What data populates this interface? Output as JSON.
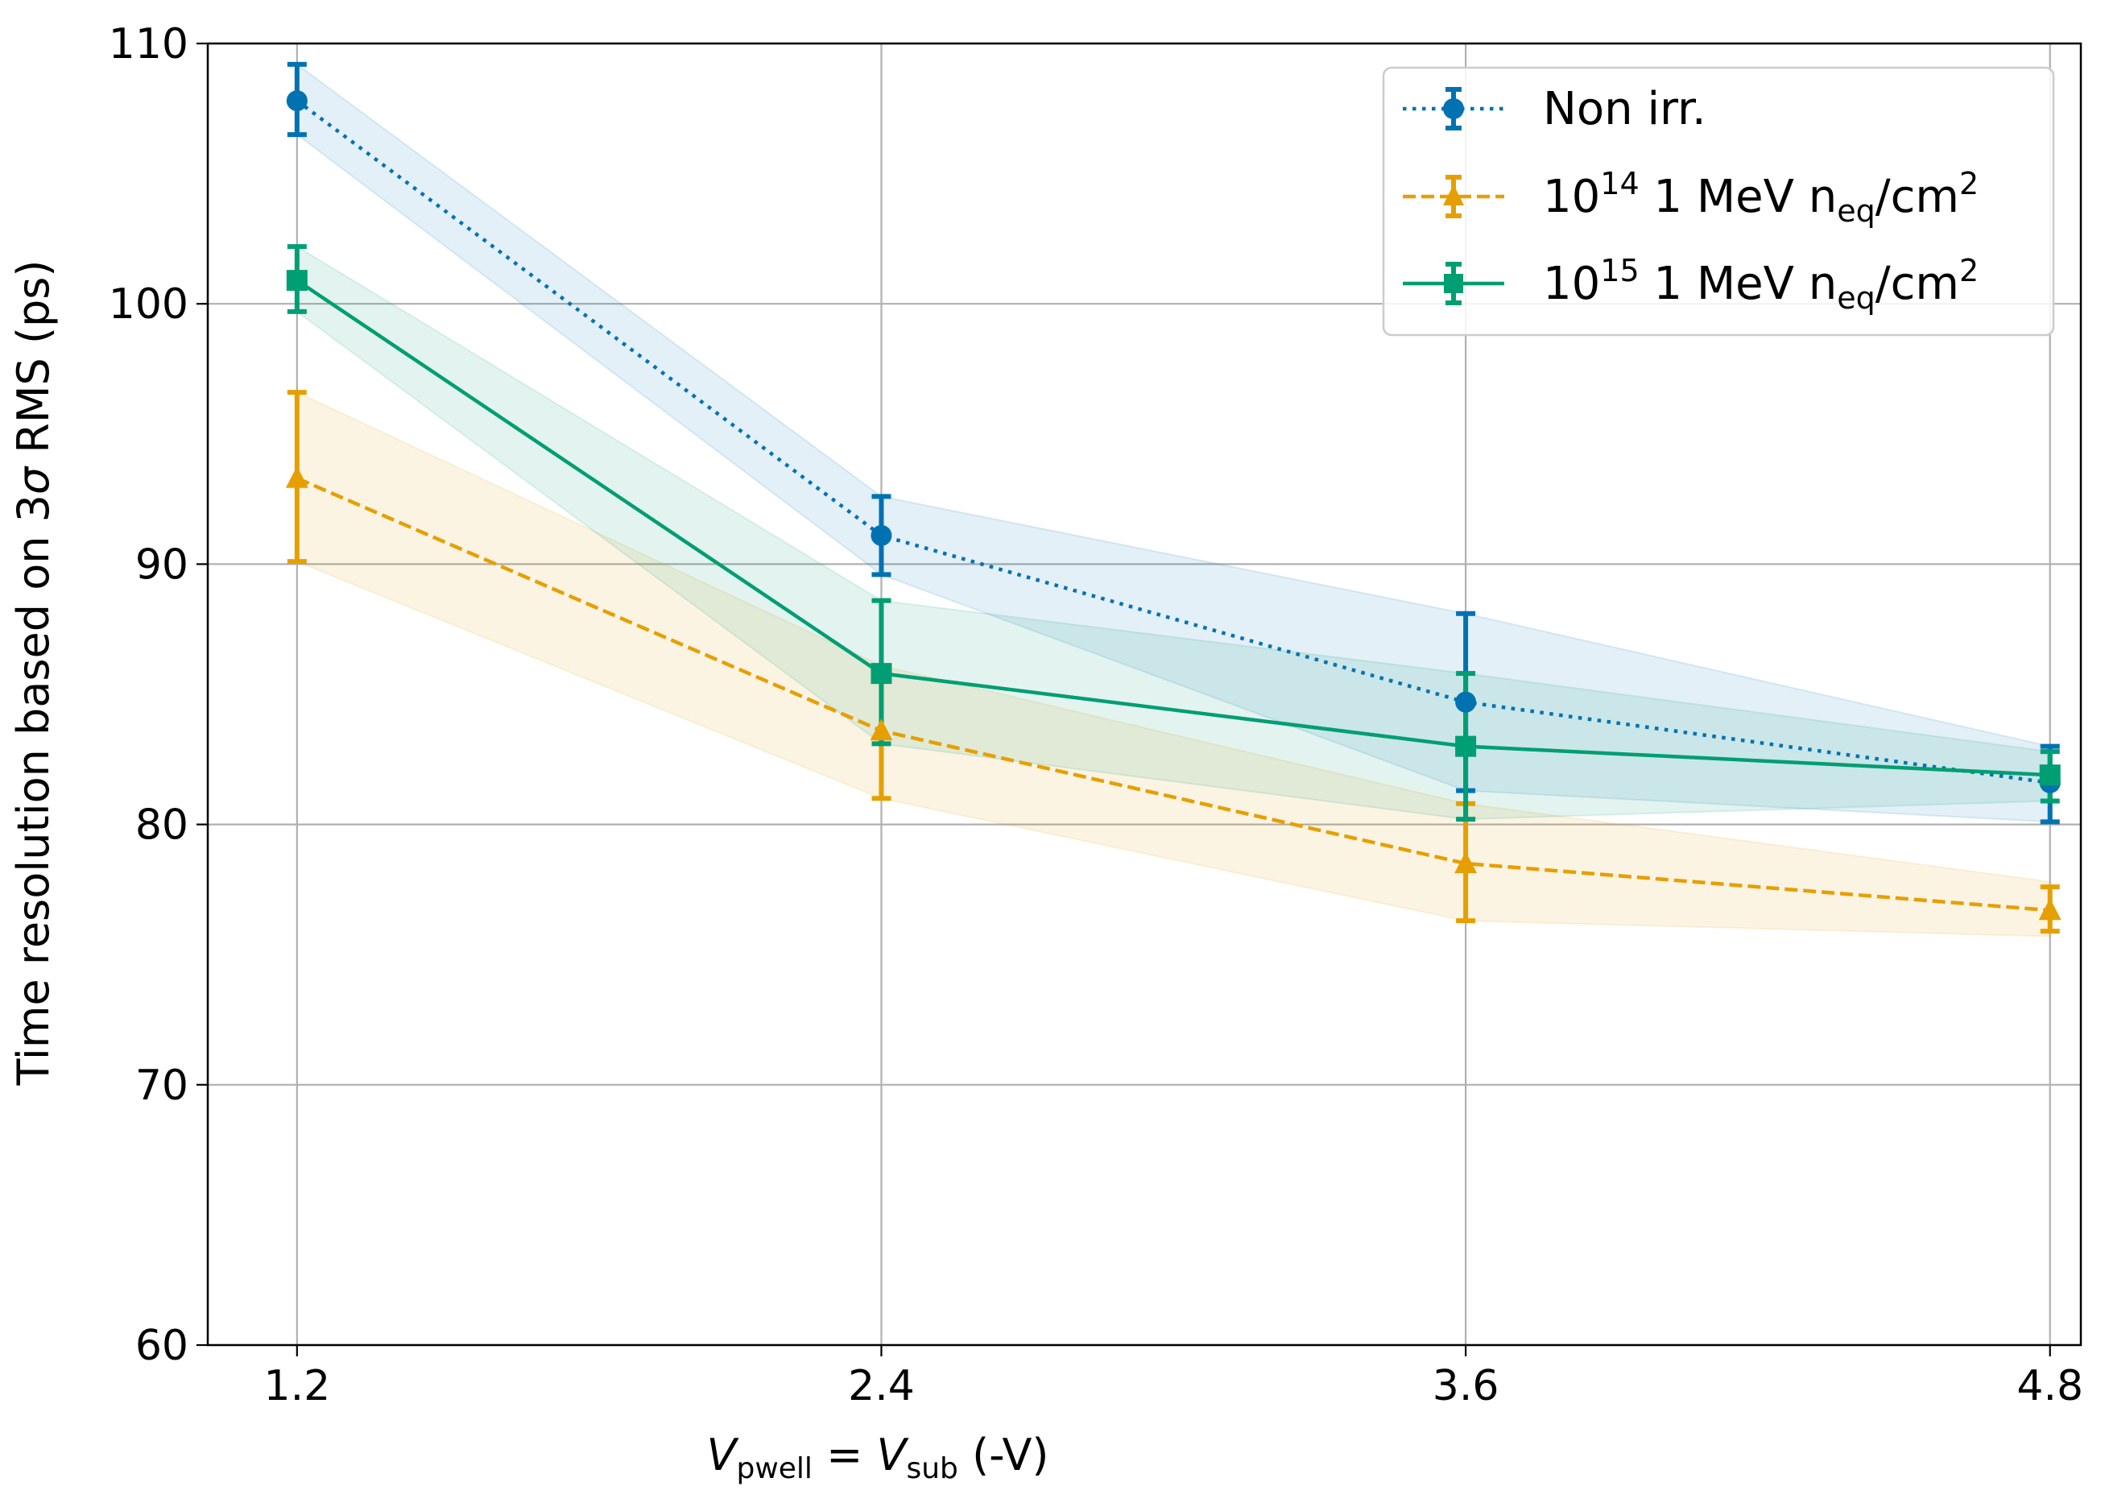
{
  "chart_data": {
    "type": "line",
    "x": [
      1.2,
      2.4,
      3.6,
      4.8
    ],
    "xticks": [
      "1.2",
      "2.4",
      "3.6",
      "4.8"
    ],
    "xlim": [
      1.0167,
      4.8633
    ],
    "ylim": [
      60,
      110
    ],
    "yticks": [
      "60",
      "70",
      "80",
      "90",
      "100",
      "110"
    ],
    "ylabel_pre": "Time resolution based on 3",
    "ylabel_sigma": "σ",
    "ylabel_post": " RMS (ps)",
    "xlabel": {
      "v1": "V",
      "sub1": "pwell",
      "eq": " = ",
      "v2": "V",
      "sub2": "sub",
      "unit": " (-V)"
    },
    "grid": true,
    "legend_position": "top-right",
    "series": [
      {
        "name": "Non irr.",
        "legend_main": "Non irr.",
        "color": "#0072b2",
        "linestyle": "dotted",
        "marker": "circle",
        "values": [
          107.8,
          91.1,
          84.7,
          81.6
        ],
        "err_low": [
          106.5,
          89.6,
          81.3,
          80.1
        ],
        "err_high": [
          109.2,
          92.6,
          88.1,
          83.0
        ],
        "band_low": [
          106.5,
          89.6,
          81.3,
          80.1
        ],
        "band_high": [
          109.2,
          92.6,
          88.1,
          83.0
        ]
      },
      {
        "name": "10^14 1 MeV n_eq/cm^2",
        "legend_main": "10",
        "legend_sup": "14",
        "legend_mid": " 1 MeV n",
        "legend_sub": "eq",
        "legend_unit": "/cm",
        "legend_sup2": "2",
        "color": "#e69f00",
        "linestyle": "dashed",
        "marker": "triangle",
        "values": [
          93.3,
          83.6,
          78.5,
          76.7
        ],
        "err_low": [
          90.1,
          81.0,
          76.3,
          75.9
        ],
        "err_high": [
          96.6,
          86.1,
          80.8,
          77.6
        ],
        "band_low": [
          90.1,
          81.0,
          76.3,
          75.7
        ],
        "band_high": [
          96.6,
          86.1,
          80.8,
          77.8
        ]
      },
      {
        "name": "10^15 1 MeV n_eq/cm^2",
        "legend_main": "10",
        "legend_sup": "15",
        "legend_mid": " 1 MeV n",
        "legend_sub": "eq",
        "legend_unit": "/cm",
        "legend_sup2": "2",
        "color": "#009e73",
        "linestyle": "solid",
        "marker": "square",
        "values": [
          100.9,
          85.8,
          83.0,
          81.9
        ],
        "err_low": [
          99.7,
          83.1,
          80.2,
          80.9
        ],
        "err_high": [
          102.2,
          88.6,
          85.8,
          82.8
        ],
        "band_low": [
          99.7,
          83.1,
          80.2,
          80.9
        ],
        "band_high": [
          102.2,
          88.6,
          85.8,
          82.8
        ]
      }
    ]
  }
}
